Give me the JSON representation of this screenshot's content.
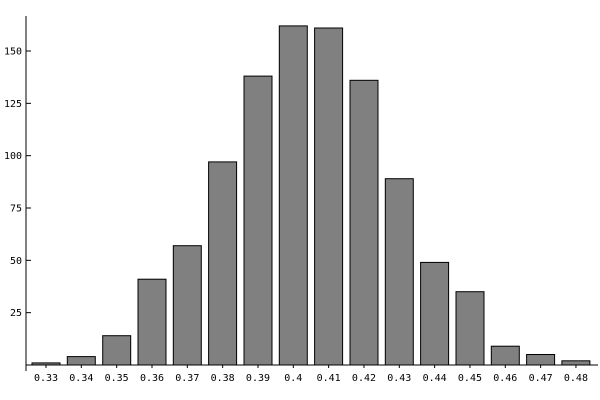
{
  "chart_data": {
    "type": "bar",
    "title": "",
    "xlabel": "",
    "ylabel": "",
    "categories": [
      "0.33",
      "0.34",
      "0.35",
      "0.36",
      "0.37",
      "0.38",
      "0.39",
      "0.4",
      "0.41",
      "0.42",
      "0.43",
      "0.44",
      "0.45",
      "0.46",
      "0.47",
      "0.48"
    ],
    "values": [
      1,
      4,
      14,
      41,
      57,
      97,
      138,
      162,
      161,
      136,
      89,
      49,
      35,
      9,
      5,
      2
    ],
    "yticks": [
      25,
      50,
      75,
      100,
      125,
      150
    ],
    "ylim": [
      0,
      168
    ],
    "grid": false,
    "legend": "none",
    "bar_color": "#808080",
    "bar_edge_color": "#000000"
  }
}
